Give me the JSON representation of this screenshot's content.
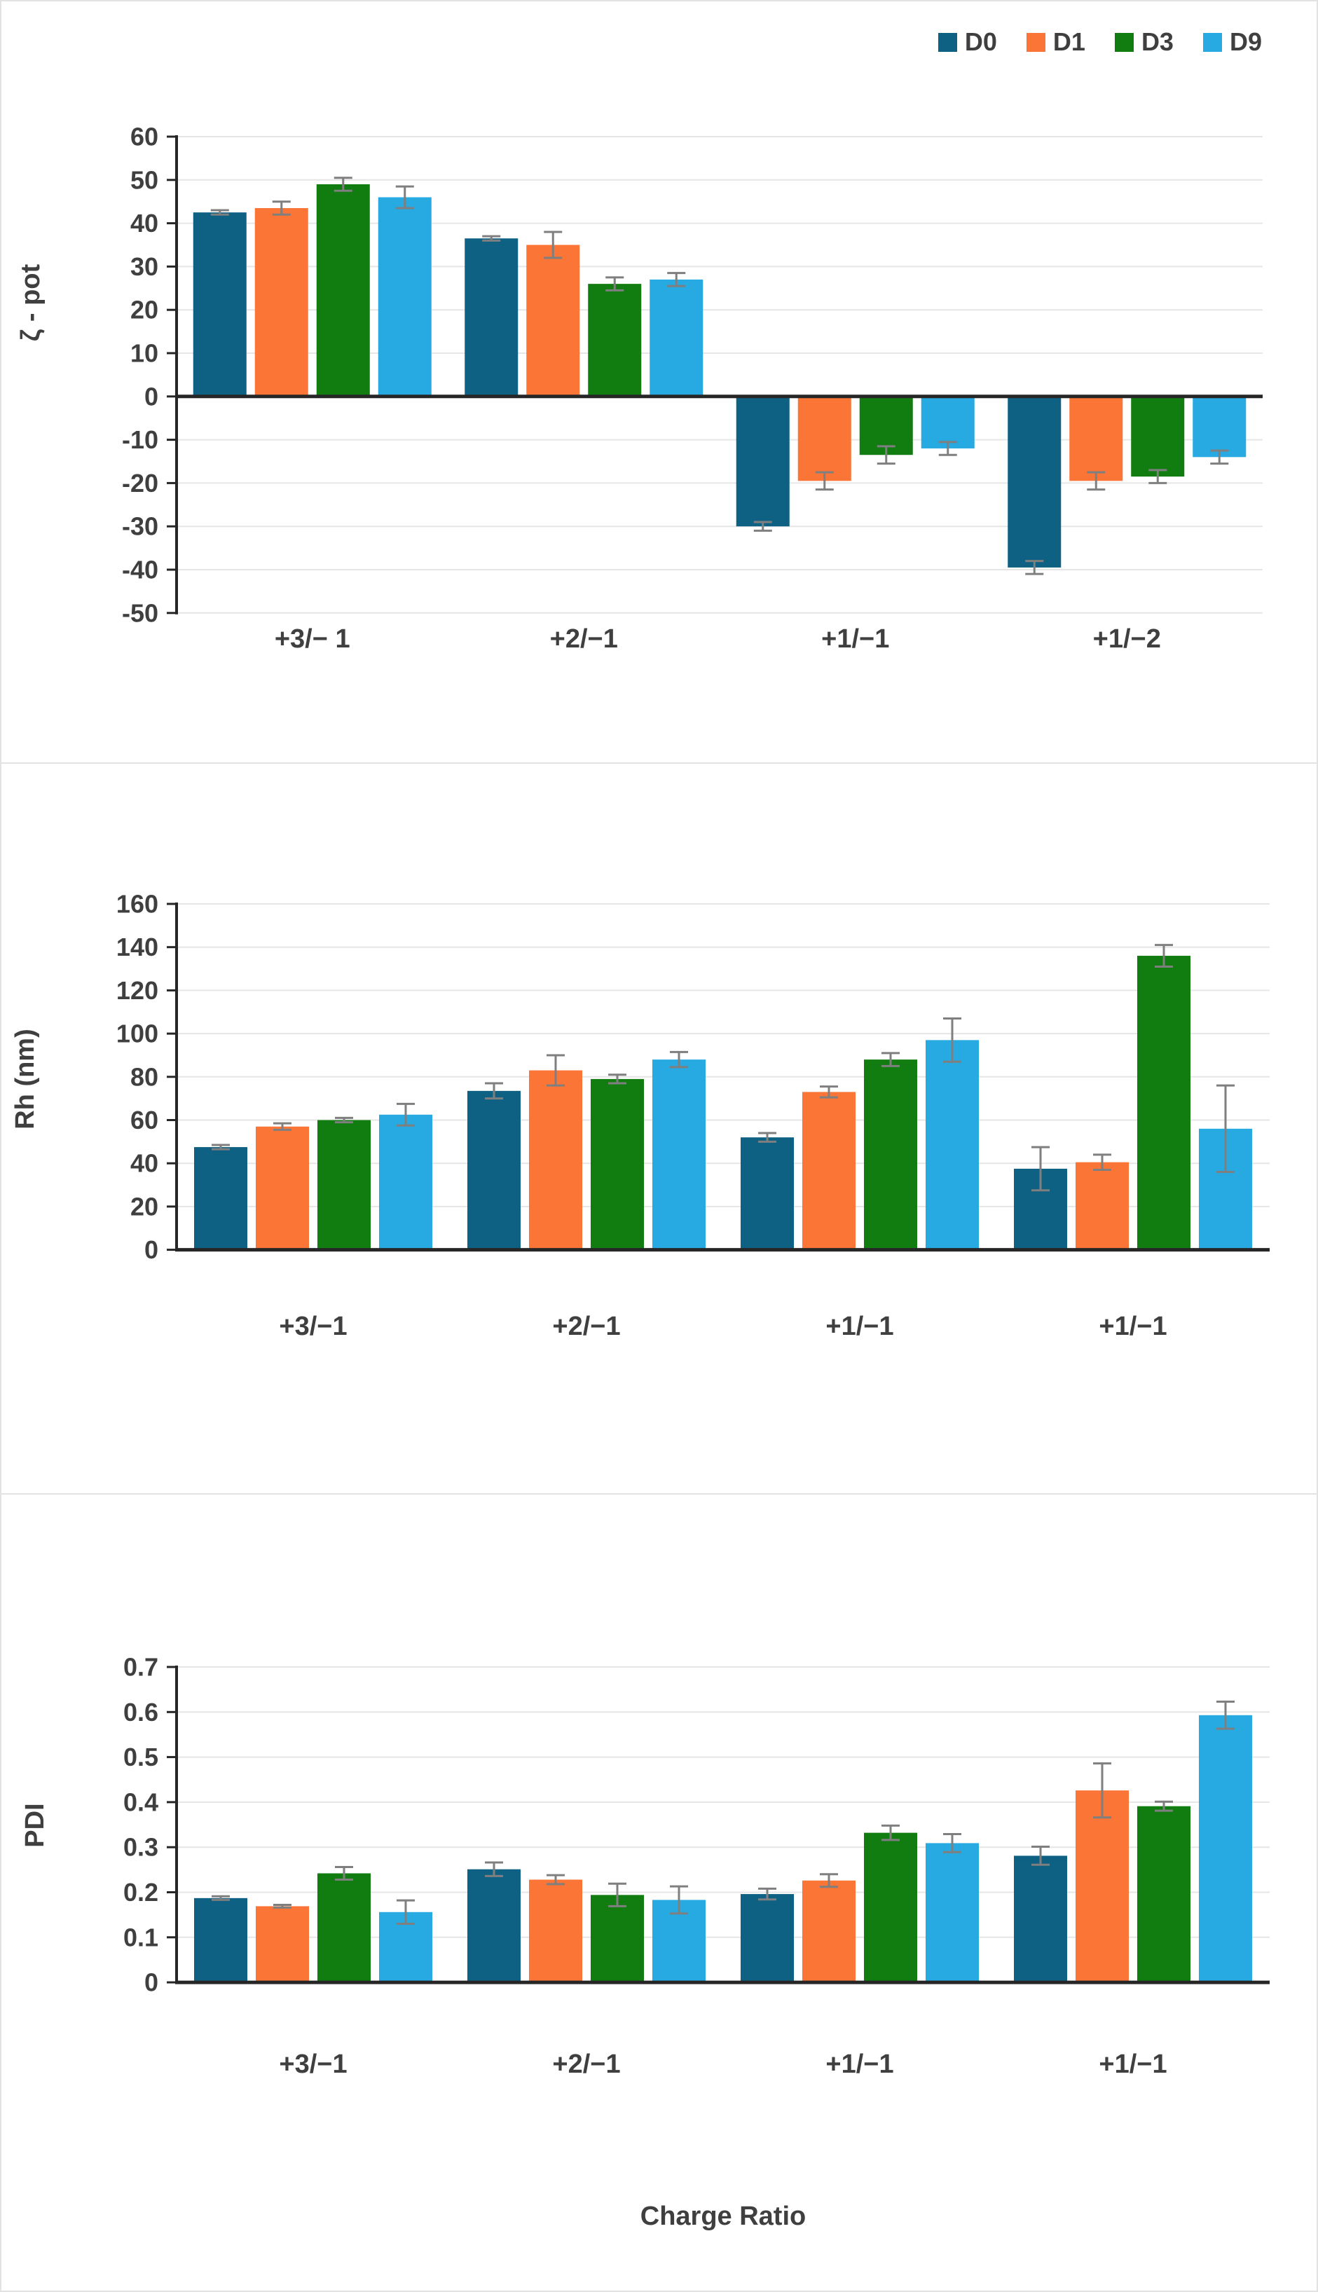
{
  "figure": {
    "text_color": "#3f3f3f",
    "grid_color": "#e6e6e6",
    "axis_color": "#262626",
    "error_color": "#7f7f7f",
    "background": "#ffffff",
    "legend": [
      {
        "label": "D0",
        "color": "#0f6183"
      },
      {
        "label": "D1",
        "color": "#fb7536"
      },
      {
        "label": "D3",
        "color": "#117c10"
      },
      {
        "label": "D9",
        "color": "#27a9e1"
      }
    ]
  },
  "chart_data": [
    {
      "type": "bar",
      "title": "",
      "ylabel": "ζ - pot",
      "xlabel": "",
      "categories": [
        "+3/− 1",
        "+2/−1",
        "+1/−1",
        "+1/−2"
      ],
      "ylim": [
        -50,
        60
      ],
      "ytick_step": 10,
      "tick_decimals": 0,
      "grid": true,
      "legend_position": "top-right",
      "series": [
        {
          "name": "D0",
          "values": [
            42.5,
            36.5,
            -30.0,
            -39.5
          ],
          "errors": [
            0.5,
            0.5,
            1.0,
            1.5
          ]
        },
        {
          "name": "D1",
          "values": [
            43.5,
            35.0,
            -19.5,
            -19.5
          ],
          "errors": [
            1.5,
            3.0,
            2.0,
            2.0
          ]
        },
        {
          "name": "D3",
          "values": [
            49.0,
            26.0,
            -13.5,
            -18.5
          ],
          "errors": [
            1.5,
            1.5,
            2.0,
            1.5
          ]
        },
        {
          "name": "D9",
          "values": [
            46.0,
            27.0,
            -12.0,
            -14.0
          ],
          "errors": [
            2.5,
            1.5,
            1.5,
            1.5
          ]
        }
      ]
    },
    {
      "type": "bar",
      "title": "",
      "ylabel": "Rh (nm)",
      "xlabel": "",
      "categories": [
        "+3/−1",
        "+2/−1",
        "+1/−1",
        "+1/−1"
      ],
      "ylim": [
        0,
        160
      ],
      "ytick_step": 20,
      "tick_decimals": 0,
      "grid": true,
      "legend_position": "none",
      "series": [
        {
          "name": "D0",
          "values": [
            47.5,
            73.5,
            52.0,
            37.5
          ],
          "errors": [
            1.0,
            3.5,
            2.0,
            10.0
          ]
        },
        {
          "name": "D1",
          "values": [
            57.0,
            83.0,
            73.0,
            40.5
          ],
          "errors": [
            1.5,
            7.0,
            2.5,
            3.5
          ]
        },
        {
          "name": "D3",
          "values": [
            60.0,
            79.0,
            88.0,
            136.0
          ],
          "errors": [
            1.0,
            2.0,
            3.0,
            5.0
          ]
        },
        {
          "name": "D9",
          "values": [
            62.5,
            88.0,
            97.0,
            56.0
          ],
          "errors": [
            5.0,
            3.5,
            10.0,
            20.0
          ]
        }
      ]
    },
    {
      "type": "bar",
      "title": "",
      "ylabel": "PDI",
      "xlabel": "Charge Ratio",
      "categories": [
        "+3/−1",
        "+2/−1",
        "+1/−1",
        "+1/−1"
      ],
      "ylim": [
        0,
        0.7
      ],
      "ytick_step": 0.1,
      "tick_decimals": 1,
      "grid": true,
      "legend_position": "none",
      "series": [
        {
          "name": "D0",
          "values": [
            0.187,
            0.251,
            0.196,
            0.281
          ],
          "errors": [
            0.004,
            0.015,
            0.012,
            0.02
          ]
        },
        {
          "name": "D1",
          "values": [
            0.169,
            0.228,
            0.226,
            0.426
          ],
          "errors": [
            0.003,
            0.01,
            0.014,
            0.06
          ]
        },
        {
          "name": "D3",
          "values": [
            0.242,
            0.194,
            0.332,
            0.391
          ],
          "errors": [
            0.014,
            0.025,
            0.016,
            0.01
          ]
        },
        {
          "name": "D9",
          "values": [
            0.156,
            0.183,
            0.309,
            0.593
          ],
          "errors": [
            0.026,
            0.03,
            0.02,
            0.03
          ]
        }
      ]
    }
  ]
}
